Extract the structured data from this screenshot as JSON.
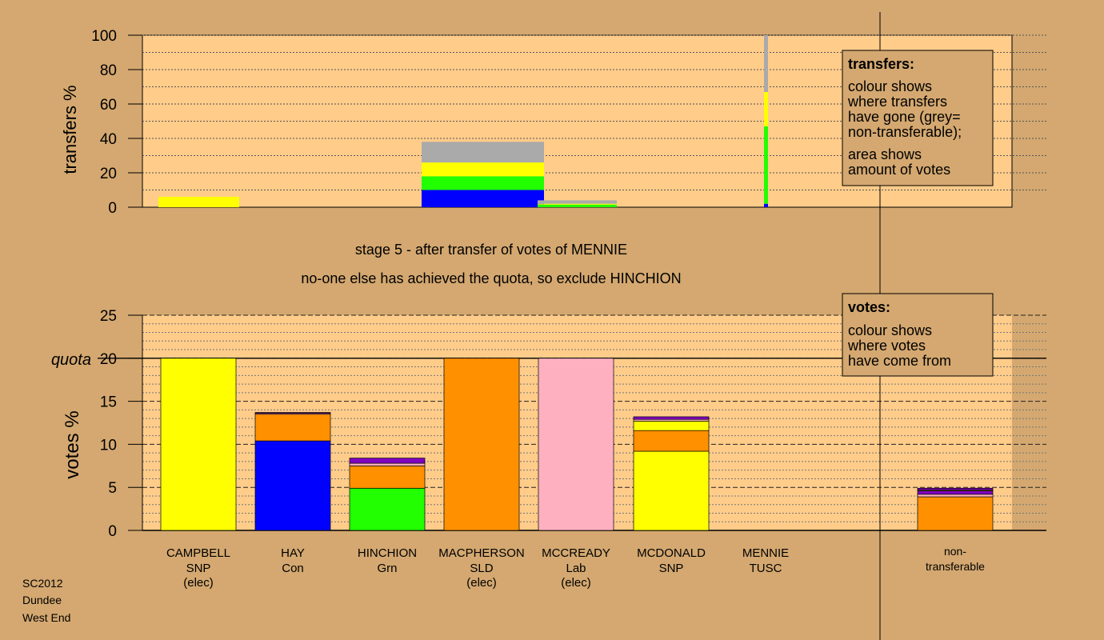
{
  "colors": {
    "background": "#D4A870",
    "plot_bg": "#FFCC8A",
    "SNP": "#FFFF00",
    "Con": "#0000FF",
    "Grn": "#22FF00",
    "SLD": "#FF9000",
    "Lab": "#FFB0C0",
    "TUSC": "#8000C0",
    "non_transferable": "#AAAAAA",
    "legend_bg": "#D4A870"
  },
  "stage_title": "stage 5 - after transfer of votes of MENNIE",
  "stage_subtitle": "no-one else has achieved the quota, so exclude HINCHION",
  "footer": [
    "SC2012",
    "Dundee",
    "West End"
  ],
  "legend_transfers": {
    "title": "transfers:",
    "lines": [
      "colour shows",
      "where transfers",
      "have gone (grey=",
      "non-transferable);"
    ],
    "lines2": [
      "area shows",
      "amount of votes"
    ]
  },
  "legend_votes": {
    "title": "votes:",
    "lines": [
      "colour shows",
      "where votes",
      "have come from"
    ]
  },
  "chart_data": [
    {
      "type": "bar",
      "name": "transfers",
      "ylabel": "transfers %",
      "ylim": [
        0,
        100
      ],
      "yticks": [
        0,
        20,
        40,
        60,
        80,
        100
      ],
      "bars": [
        {
          "candidate": "CAMPBELL",
          "segments": [
            {
              "party": "SNP",
              "value": 6
            }
          ]
        },
        {
          "candidate": "MACPHERSON",
          "segments": [
            {
              "party": "Con",
              "value": 10
            },
            {
              "party": "Grn",
              "value": 8
            },
            {
              "party": "SNP",
              "value": 8
            },
            {
              "party": "non_transferable",
              "value": 12
            }
          ]
        },
        {
          "candidate": "MCCREADY",
          "segments": [
            {
              "party": "Grn",
              "value": 1.5
            },
            {
              "party": "SNP",
              "value": 0.5
            },
            {
              "party": "non_transferable",
              "value": 2
            }
          ]
        },
        {
          "candidate": "MENNIE",
          "segments": [
            {
              "party": "Con",
              "value": 2
            },
            {
              "party": "Grn",
              "value": 45
            },
            {
              "party": "SNP",
              "value": 20
            },
            {
              "party": "non_transferable",
              "value": 33
            }
          ]
        }
      ]
    },
    {
      "type": "bar",
      "name": "votes",
      "ylabel": "votes %",
      "ylim": [
        0,
        25
      ],
      "yticks": [
        0,
        5,
        10,
        15,
        20,
        25
      ],
      "quota": 20,
      "quota_label": "quota",
      "candidates": [
        {
          "name": "CAMPBELL",
          "party": "SNP",
          "status": "(elec)",
          "segments": [
            {
              "party": "SNP",
              "value": 20
            }
          ]
        },
        {
          "name": "HAY",
          "party": "Con",
          "status": "",
          "segments": [
            {
              "party": "Con",
              "value": 10.4
            },
            {
              "party": "SLD",
              "value": 3.1
            },
            {
              "party": "Lab",
              "value": 0.1
            },
            {
              "party": "TUSC",
              "value": 0.1
            }
          ]
        },
        {
          "name": "HINCHION",
          "party": "Grn",
          "status": "",
          "segments": [
            {
              "party": "Grn",
              "value": 4.9
            },
            {
              "party": "SLD",
              "value": 2.6
            },
            {
              "party": "Lab",
              "value": 0.3
            },
            {
              "party": "TUSC",
              "value": 0.6
            }
          ]
        },
        {
          "name": "MACPHERSON",
          "party": "SLD",
          "status": "(elec)",
          "segments": [
            {
              "party": "SLD",
              "value": 20
            }
          ]
        },
        {
          "name": "MCCREADY",
          "party": "Lab",
          "status": "(elec)",
          "segments": [
            {
              "party": "Lab",
              "value": 20
            }
          ]
        },
        {
          "name": "MCDONALD",
          "party": "SNP",
          "status": "",
          "segments": [
            {
              "party": "SNP",
              "value": 9.2
            },
            {
              "party": "SLD",
              "value": 2.4
            },
            {
              "party": "SNP",
              "value": 1.1
            },
            {
              "party": "Lab",
              "value": 0.2
            },
            {
              "party": "TUSC",
              "value": 0.3
            }
          ]
        },
        {
          "name": "MENNIE",
          "party": "TUSC",
          "status": "",
          "segments": []
        }
      ],
      "non_transferable": {
        "label_lines": [
          "non-",
          "transferable"
        ],
        "segments": [
          {
            "party": "SLD",
            "value": 3.9
          },
          {
            "party": "Lab",
            "value": 0.3
          },
          {
            "party": "TUSC",
            "value": 0.4
          },
          {
            "party": "SNP",
            "value": 0.1
          },
          {
            "party": "TUSC",
            "value": 0.2
          }
        ]
      }
    }
  ]
}
